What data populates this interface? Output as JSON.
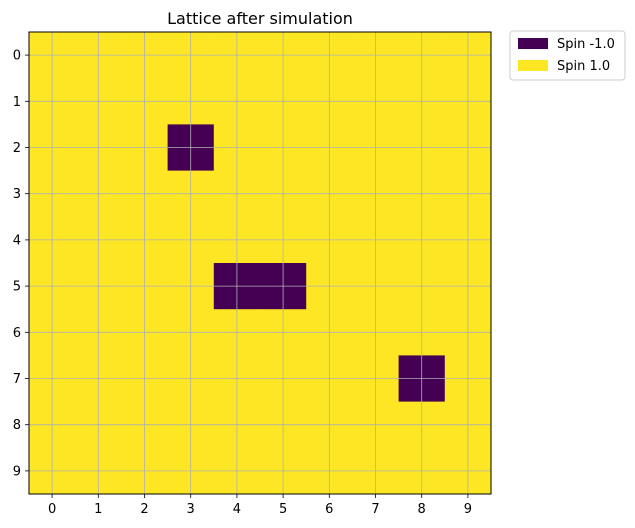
{
  "chart_data": {
    "type": "heatmap",
    "title": "Lattice after simulation",
    "xlabel": "",
    "ylabel": "",
    "x_ticks": [
      "0",
      "1",
      "2",
      "3",
      "4",
      "5",
      "6",
      "7",
      "8",
      "9"
    ],
    "y_ticks": [
      "0",
      "1",
      "2",
      "3",
      "4",
      "5",
      "6",
      "7",
      "8",
      "9"
    ],
    "grid": true,
    "legend_position": "outside-upper-right",
    "legend": [
      {
        "label": "Spin -1.0",
        "value": -1.0,
        "color": "#440154"
      },
      {
        "label": "Spin 1.0",
        "value": 1.0,
        "color": "#fde725"
      }
    ],
    "colormap": "viridis",
    "grid_color": "#b0b0b0",
    "matrix": [
      [
        1,
        1,
        1,
        1,
        1,
        1,
        1,
        1,
        1,
        1
      ],
      [
        1,
        1,
        1,
        1,
        1,
        1,
        1,
        1,
        1,
        1
      ],
      [
        1,
        1,
        1,
        -1,
        1,
        1,
        1,
        1,
        1,
        1
      ],
      [
        1,
        1,
        1,
        1,
        1,
        1,
        1,
        1,
        1,
        1
      ],
      [
        1,
        1,
        1,
        1,
        1,
        1,
        1,
        1,
        1,
        1
      ],
      [
        1,
        1,
        1,
        1,
        -1,
        -1,
        1,
        1,
        1,
        1
      ],
      [
        1,
        1,
        1,
        1,
        1,
        1,
        1,
        1,
        1,
        1
      ],
      [
        1,
        1,
        1,
        1,
        1,
        1,
        1,
        1,
        -1,
        1
      ],
      [
        1,
        1,
        1,
        1,
        1,
        1,
        1,
        1,
        1,
        1
      ],
      [
        1,
        1,
        1,
        1,
        1,
        1,
        1,
        1,
        1,
        1
      ]
    ]
  }
}
